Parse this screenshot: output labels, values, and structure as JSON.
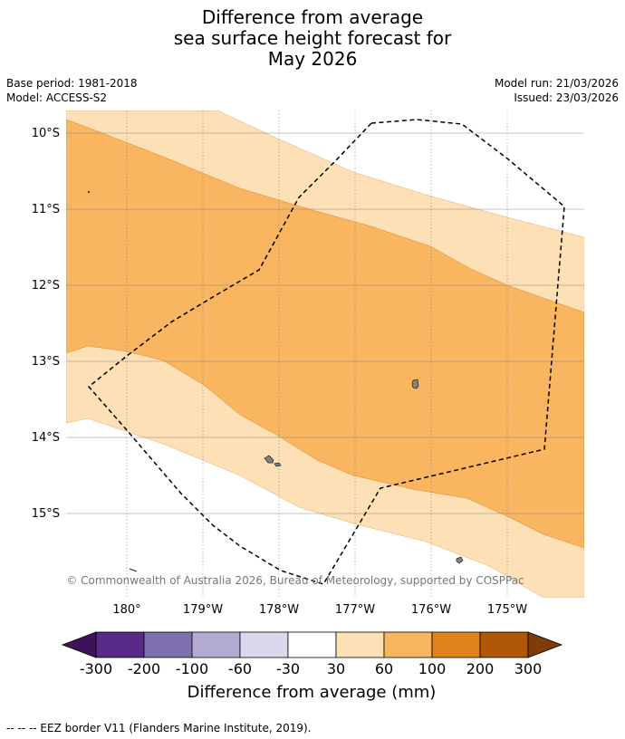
{
  "title": {
    "line1": "Difference from average",
    "line2": "sea surface height forecast for",
    "line3": "May 2026"
  },
  "meta": {
    "base_period": "Base period: 1981-2018",
    "model": "Model: ACCESS-S2",
    "model_run": "Model run: 21/03/2026",
    "issued": "Issued: 23/03/2026"
  },
  "map": {
    "lat_labels": [
      "10°S",
      "11°S",
      "12°S",
      "13°S",
      "14°S",
      "15°S"
    ],
    "lon_labels": [
      "180°",
      "179°W",
      "178°W",
      "177°W",
      "176°W",
      "175°W"
    ],
    "copyright": "© Commonwealth of Australia 2026, Bureau of Meteorology, supported by COSPPac",
    "colors": {
      "band_30_60": "#fde0b5",
      "band_60_100": "#f9b560",
      "land": "#808080",
      "eez_border": "#000000"
    }
  },
  "colorbar": {
    "tick_labels": [
      "-300",
      "-200",
      "-100",
      "-60",
      "-30",
      "30",
      "60",
      "100",
      "200",
      "300"
    ],
    "colors": [
      "#3f1158",
      "#5a2a8a",
      "#8070b0",
      "#b3aad2",
      "#d9d8ec",
      "#ffffff",
      "#fde0b5",
      "#f9b560",
      "#e0821a",
      "#b05808",
      "#7f3b08"
    ],
    "label": "Difference from average (mm)"
  },
  "footnote": "--  --  -- EEZ border V11 (Flanders Marine Institute, 2019)."
}
